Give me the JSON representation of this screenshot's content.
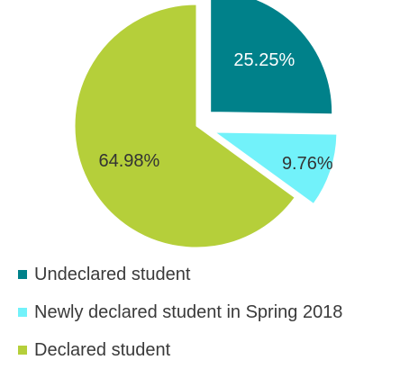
{
  "chart_data": {
    "type": "pie",
    "title": "",
    "slices": [
      {
        "label": "Undeclared student",
        "value": 25.25,
        "display": "25.25%",
        "color": "#00818A",
        "exploded": true,
        "label_color": "#ffffff"
      },
      {
        "label": "Newly declared student in Spring 2018",
        "value": 9.76,
        "display": "9.76%",
        "color": "#72F2FA",
        "exploded": true,
        "label_color": "#333333"
      },
      {
        "label": "Declared student",
        "value": 64.98,
        "display": "64.98%",
        "color": "#B5CF3A",
        "exploded": false,
        "label_color": "#333333"
      }
    ],
    "legend_position": "bottom-left"
  },
  "legend": [
    {
      "label": "Undeclared student",
      "color": "#00818A"
    },
    {
      "label": "Newly declared student in Spring 2018",
      "color": "#72F2FA"
    },
    {
      "label": "Declared student",
      "color": "#B5CF3A"
    }
  ]
}
